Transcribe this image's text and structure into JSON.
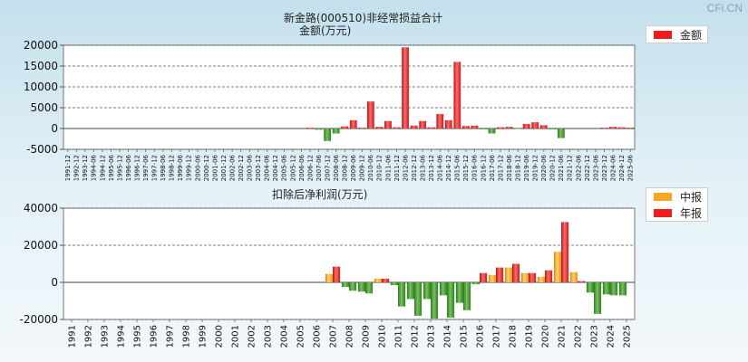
{
  "watermark": "CFi.CN",
  "charts": {
    "top": {
      "title": "新金路(000510)非经常损益合计",
      "ylabel": "金额(万元)",
      "legend": [
        {
          "name": "金额",
          "color": "#ee1c1c"
        }
      ]
    },
    "bottom": {
      "title": "扣除后净利润(万元)",
      "legend": [
        {
          "name": "中报",
          "color": "#f5a623"
        },
        {
          "name": "年报",
          "color": "#ee1c1c"
        }
      ]
    }
  },
  "chart_data": [
    {
      "type": "bar",
      "title": "新金路(000510)非经常损益合计",
      "ylabel": "金额(万元)",
      "ylim": [
        -5000,
        20000
      ],
      "yticks": [
        -5000,
        0,
        5000,
        10000,
        15000,
        20000
      ],
      "categories": [
        "1991-12",
        "1992-12",
        "1993-12",
        "1994-06",
        "1994-12",
        "1995-06",
        "1995-12",
        "1996-06",
        "1996-12",
        "1997-06",
        "1997-12",
        "1998-06",
        "1998-12",
        "1999-06",
        "1999-12",
        "2000-06",
        "2000-12",
        "2001-06",
        "2001-12",
        "2002-06",
        "2002-12",
        "2003-06",
        "2003-12",
        "2004-06",
        "2004-12",
        "2005-06",
        "2005-12",
        "2006-06",
        "2006-12",
        "2007-06",
        "2007-12",
        "2008-06",
        "2008-12",
        "2009-06",
        "2009-12",
        "2010-06",
        "2010-12",
        "2011-06",
        "2011-12",
        "2012-06",
        "2012-12",
        "2013-06",
        "2013-12",
        "2014-06",
        "2014-12",
        "2015-06",
        "2015-12",
        "2016-06",
        "2016-12",
        "2017-06",
        "2017-12",
        "2018-06",
        "2018-12",
        "2019-06",
        "2019-12",
        "2020-06",
        "2020-12",
        "2021-06",
        "2021-12",
        "2022-06",
        "2022-12",
        "2023-06",
        "2023-12",
        "2024-06",
        "2024-12",
        "2025-06"
      ],
      "series": [
        {
          "name": "金额",
          "values": [
            0,
            0,
            0,
            0,
            0,
            0,
            0,
            0,
            0,
            0,
            0,
            0,
            0,
            0,
            0,
            0,
            0,
            0,
            0,
            0,
            0,
            0,
            0,
            0,
            0,
            0,
            0,
            0,
            200,
            -300,
            -3000,
            -1200,
            500,
            2000,
            200,
            6500,
            400,
            1800,
            300,
            19500,
            700,
            1800,
            300,
            3500,
            2000,
            16000,
            600,
            700,
            -200,
            -1200,
            300,
            400,
            -100,
            1100,
            1500,
            800,
            -200,
            -2300,
            0,
            0,
            0,
            0,
            200,
            400,
            300,
            200
          ]
        }
      ]
    },
    {
      "type": "bar",
      "title": "扣除后净利润(万元)",
      "ylim": [
        -20000,
        40000
      ],
      "yticks": [
        -20000,
        0,
        20000,
        40000
      ],
      "categories": [
        "1991",
        "1992",
        "1993",
        "1994",
        "1995",
        "1996",
        "1997",
        "1998",
        "1999",
        "2000",
        "2001",
        "2002",
        "2003",
        "2004",
        "2005",
        "2006",
        "2007",
        "2008",
        "2009",
        "2010",
        "2011",
        "2012",
        "2013",
        "2014",
        "2015",
        "2016",
        "2017",
        "2018",
        "2019",
        "2020",
        "2021",
        "2022",
        "2023",
        "2024",
        "2025"
      ],
      "series": [
        {
          "name": "中报",
          "values": [
            null,
            null,
            null,
            null,
            null,
            null,
            null,
            null,
            null,
            null,
            null,
            null,
            null,
            null,
            null,
            null,
            4500,
            -2500,
            -5000,
            2000,
            -1500,
            -9000,
            -9000,
            -7000,
            -11000,
            -1000,
            4000,
            8000,
            5000,
            3000,
            16500,
            5500,
            -5500,
            -6500,
            -7000
          ]
        },
        {
          "name": "年报",
          "values": [
            null,
            null,
            null,
            null,
            null,
            null,
            null,
            null,
            null,
            null,
            null,
            null,
            null,
            null,
            null,
            null,
            8500,
            -4500,
            -6000,
            2000,
            -13000,
            -18000,
            -19500,
            -19000,
            -15000,
            5000,
            8000,
            10000,
            5000,
            6500,
            32500,
            700,
            -17000,
            -7000,
            null
          ]
        }
      ]
    }
  ]
}
